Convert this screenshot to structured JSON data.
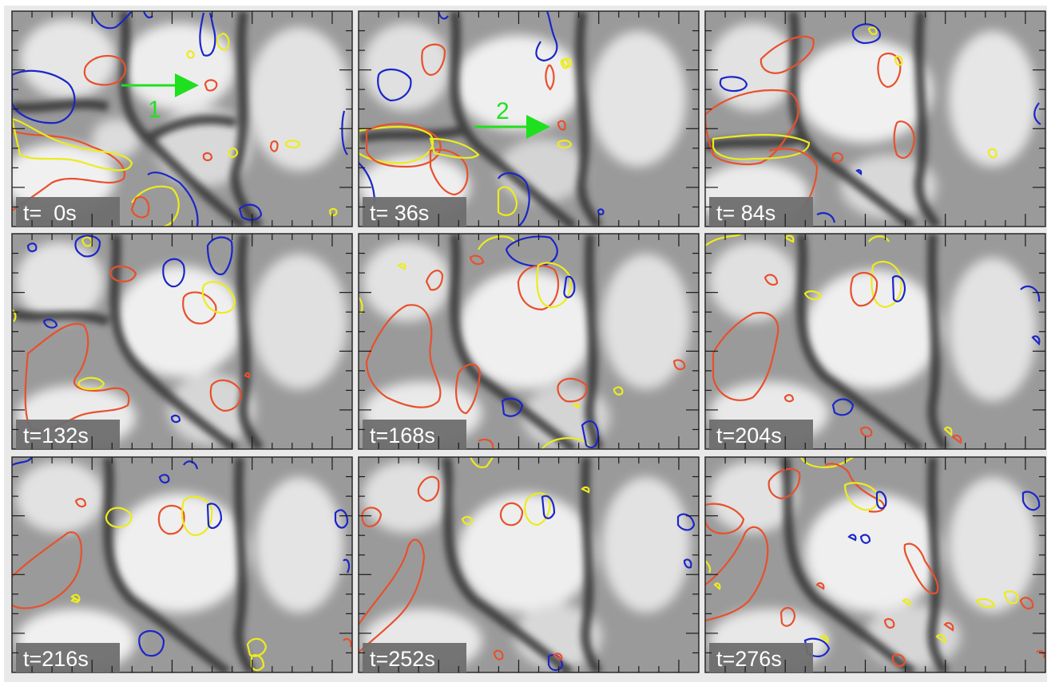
{
  "figure": {
    "description_colors": {
      "red_contour": "#e8502c",
      "blue_contour": "#1a26c8",
      "yellow_contour": "#ecec1e",
      "green_arrow": "#1fe01f",
      "label_box": "#6e6e6e",
      "label_text": "#ffffff"
    },
    "panels": [
      {
        "label": "t=  0s",
        "arrow_label": "1"
      },
      {
        "label": "t= 36s",
        "arrow_label": "2"
      },
      {
        "label": "t= 84s",
        "arrow_label": ""
      },
      {
        "label": "t=132s",
        "arrow_label": ""
      },
      {
        "label": "t=168s",
        "arrow_label": ""
      },
      {
        "label": "t=204s",
        "arrow_label": ""
      },
      {
        "label": "t=216s",
        "arrow_label": ""
      },
      {
        "label": "t=252s",
        "arrow_label": ""
      },
      {
        "label": "t=276s",
        "arrow_label": ""
      }
    ]
  }
}
